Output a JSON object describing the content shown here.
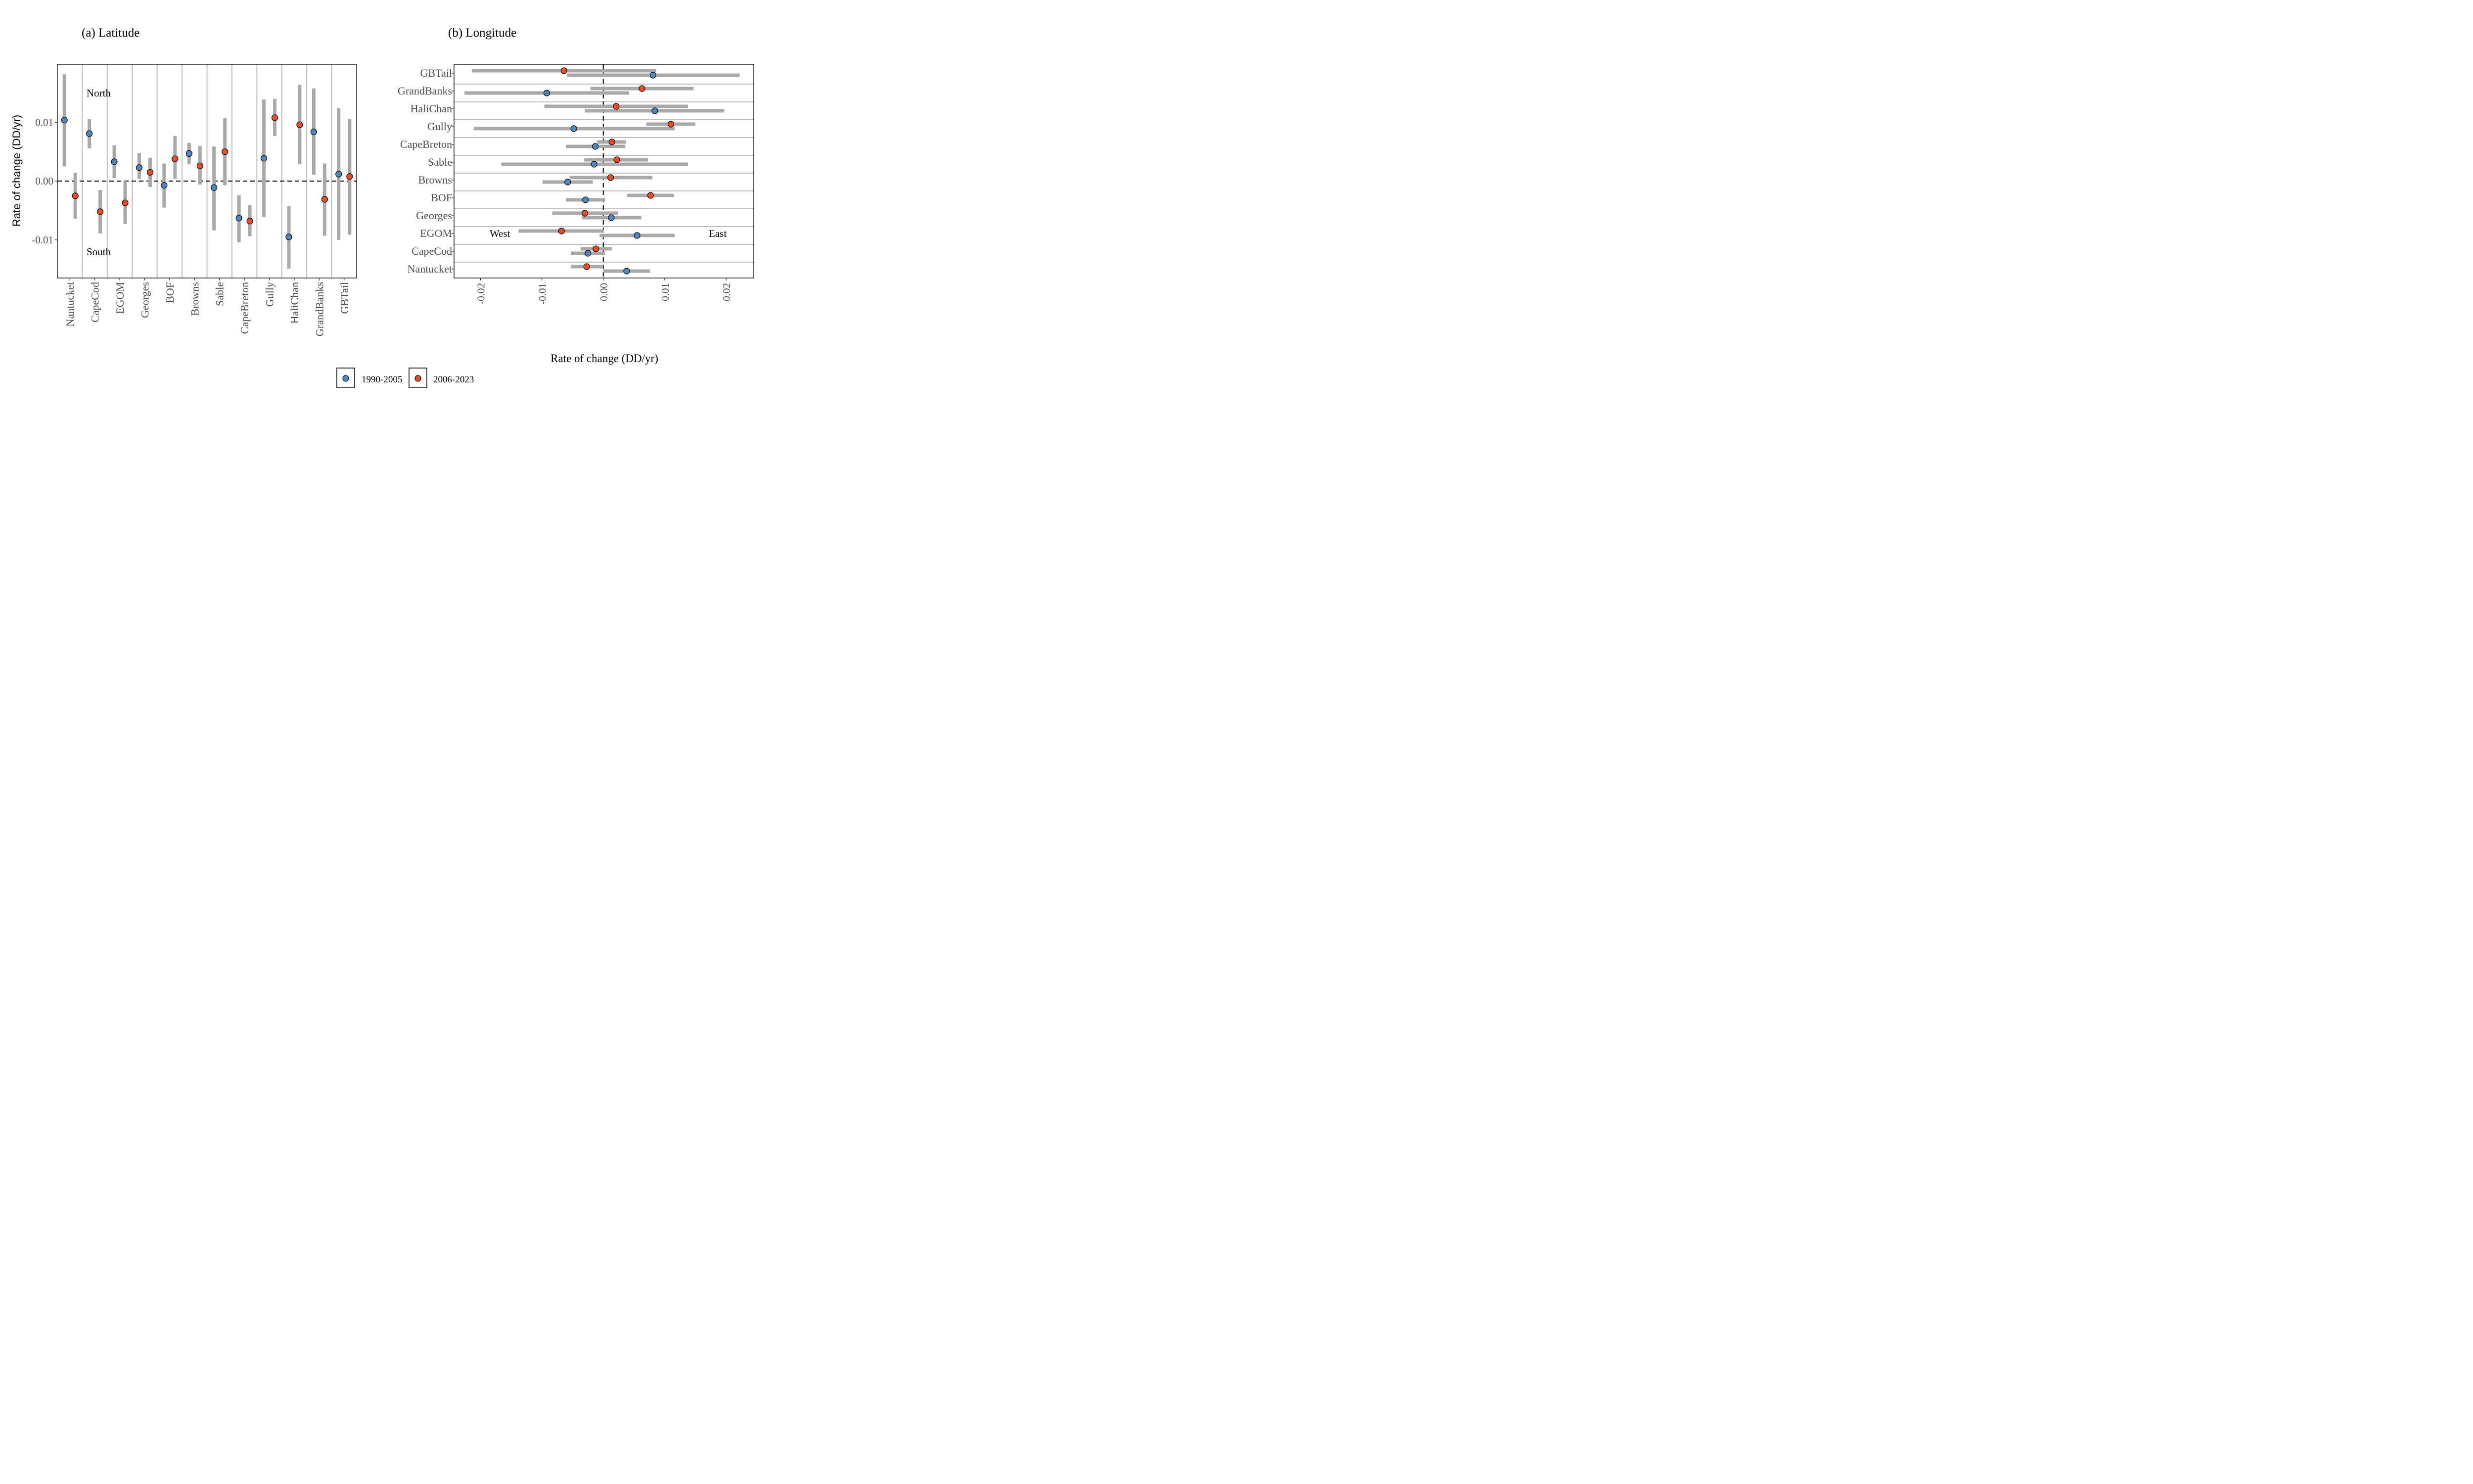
{
  "legend": {
    "items": [
      {
        "label": "1990-2005",
        "color": "#4f86c0"
      },
      {
        "label": "2006-2023",
        "color": "#ee4c1e"
      }
    ]
  },
  "chart_data": [
    {
      "type": "scatter",
      "title": "(a) Latitude",
      "ylabel": "Rate of change (DD/yr)",
      "xlabel": "",
      "ylim": [
        -0.0165,
        0.0199
      ],
      "yticks": [
        -0.01,
        0.0,
        0.01
      ],
      "ytick_labels": [
        "-0.01",
        "0.00",
        "0.01"
      ],
      "categories": [
        "Nantucket",
        "CapeCod",
        "EGOM",
        "Georges",
        "BOF",
        "Browns",
        "Sable",
        "CapeBreton",
        "Gully",
        "HaliChan",
        "GrandBanks",
        "GBTail"
      ],
      "annotations": [
        "North",
        "South"
      ],
      "reference_line": 0,
      "series": [
        {
          "name": "1990-2005",
          "color": "#4f86c0",
          "values": [
            0.0104,
            0.0081,
            0.0033,
            0.0023,
            -0.0007,
            0.0047,
            -0.0011,
            -0.0063,
            0.0039,
            -0.0095,
            0.0084,
            0.0012
          ],
          "lower": [
            0.0025,
            0.0056,
            0.0005,
            0.0004,
            -0.0045,
            0.0029,
            -0.0084,
            -0.0104,
            -0.0061,
            -0.0149,
            0.0011,
            -0.01
          ],
          "upper": [
            0.0182,
            0.0106,
            0.0061,
            0.0048,
            0.003,
            0.0065,
            0.0059,
            -0.0024,
            0.0139,
            -0.0042,
            0.0158,
            0.0124
          ]
        },
        {
          "name": "2006-2023",
          "color": "#ee4c1e",
          "values": [
            -0.0025,
            -0.0052,
            -0.0037,
            0.0015,
            0.0038,
            0.0026,
            0.005,
            -0.0068,
            0.0108,
            0.0096,
            -0.0031,
            0.0008
          ],
          "lower": [
            -0.0064,
            -0.0089,
            -0.0073,
            -0.001,
            0.0004,
            -0.0006,
            -0.0007,
            -0.0094,
            0.0077,
            0.0029,
            -0.0093,
            -0.0091
          ],
          "upper": [
            0.0014,
            -0.0015,
            0.0,
            0.004,
            0.0077,
            0.006,
            0.0107,
            -0.0041,
            0.014,
            0.0164,
            0.003,
            0.0106
          ]
        }
      ]
    },
    {
      "type": "scatter",
      "title": "(b) Longitude",
      "xlabel": "Rate of change (DD/yr)",
      "ylabel": "",
      "xlim": [
        -0.0243,
        0.0245
      ],
      "xticks": [
        -0.02,
        -0.01,
        0.0,
        0.01,
        0.02
      ],
      "xtick_labels": [
        "-0.02",
        "-0.01",
        "0.00",
        "0.01",
        "0.02"
      ],
      "categories": [
        "GBTail",
        "GrandBanks",
        "HaliChan",
        "Gully",
        "CapeBreton",
        "Sable",
        "Browns",
        "BOF",
        "Georges",
        "EGOM",
        "CapeCod",
        "Nantucket"
      ],
      "annotations": [
        "West",
        "East"
      ],
      "reference_line": 0,
      "series": [
        {
          "name": "1990-2005",
          "color": "#4f86c0",
          "values": [
            0.0081,
            -0.0092,
            0.0084,
            -0.0048,
            -0.0013,
            -0.0015,
            -0.0058,
            -0.0029,
            0.0013,
            0.0055,
            -0.0025,
            0.0038
          ],
          "lower": [
            -0.0059,
            -0.0226,
            -0.003,
            -0.0211,
            -0.0061,
            -0.0166,
            -0.0099,
            -0.0061,
            -0.0035,
            -0.0006,
            -0.0053,
            0.0
          ],
          "upper": [
            0.0222,
            0.0042,
            0.0197,
            0.0116,
            0.0036,
            0.0138,
            -0.0017,
            0.0003,
            0.0062,
            0.0116,
            0.0003,
            0.0076
          ]
        },
        {
          "name": "2006-2023",
          "color": "#ee4c1e",
          "values": [
            -0.0064,
            0.0063,
            0.0021,
            0.011,
            0.0014,
            0.0022,
            0.0012,
            0.0077,
            -0.003,
            -0.0068,
            -0.0012,
            -0.0027
          ],
          "lower": [
            -0.0214,
            -0.0021,
            -0.0096,
            0.007,
            -0.001,
            -0.0031,
            -0.0055,
            0.0039,
            -0.0083,
            -0.0138,
            -0.0037,
            -0.0053
          ],
          "upper": [
            0.0086,
            0.0147,
            0.0138,
            0.015,
            0.0037,
            0.0073,
            0.008,
            0.0115,
            0.0024,
            0.0001,
            0.0014,
            0.0
          ]
        }
      ]
    }
  ]
}
